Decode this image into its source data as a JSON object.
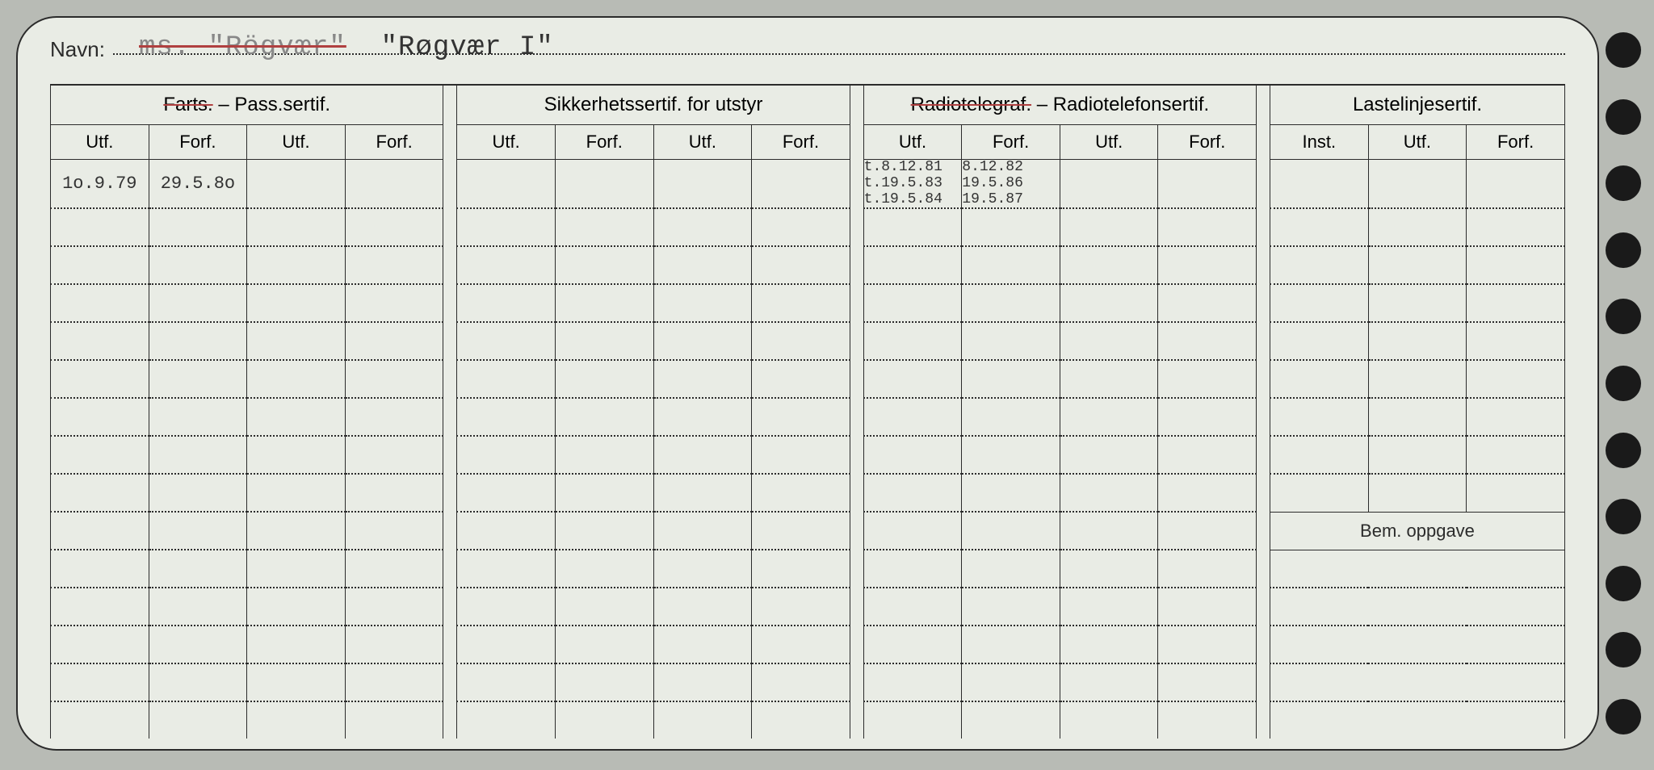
{
  "card": {
    "navn_label": "Navn:",
    "navn_strike": "ms.  \"Rögvær\"",
    "navn_title": "\"Røgvær I\"",
    "groups": {
      "g1_strike": "Farts.",
      "g1_rest": " – Pass.sertif.",
      "g2": "Sikkerhetssertif. for utstyr",
      "g3_strike": "Radiotelegraf.",
      "g3_rest": " – Radiotelefonsertif.",
      "g4": "Lastelinjesertif."
    },
    "sub": {
      "utf": "Utf.",
      "forf": "Forf.",
      "inst": "Inst."
    },
    "bem_label": "Bem. oppgave",
    "row1": {
      "c1": "1o.9.79",
      "c2": "29.5.8o",
      "c9a": "t.8.12.81",
      "c9b": "t.19.5.83",
      "c9c": "t.19.5.84",
      "c10a": "8.12.82",
      "c10b": "19.5.86",
      "c10c": "19.5.87"
    },
    "colors": {
      "page_bg": "#b8bbb5",
      "card_bg": "#e9ece5",
      "ink": "#2b2b2b",
      "typed": "#6a6a6a",
      "pen": "#2a3a9a",
      "strike": "#b04040"
    },
    "layout": {
      "binder_holes": 11,
      "data_rows": 15
    }
  }
}
